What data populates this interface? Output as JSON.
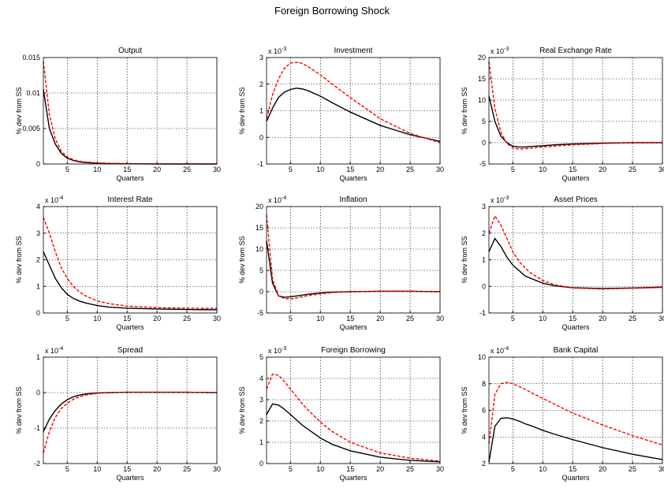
{
  "title": "Foreign Borrowing Shock",
  "chart_data": [
    {
      "type": "line",
      "title": "Output",
      "ylabel": "% dev from SS",
      "xlabel": "Quarters",
      "x": [
        1,
        2,
        3,
        4,
        5,
        6,
        7,
        8,
        10,
        12,
        15,
        20,
        25,
        30
      ],
      "xlim": [
        1,
        30
      ],
      "xticks": [
        5,
        10,
        15,
        20,
        25,
        30
      ],
      "ylim": [
        0,
        0.015
      ],
      "yticks": [
        0,
        0.005,
        0.01,
        0.015
      ],
      "grid": true,
      "series": [
        {
          "color": "#000000",
          "linestyle": "solid",
          "values": [
            0.0105,
            0.005,
            0.0028,
            0.0015,
            0.0008,
            0.0005,
            0.0003,
            0.0002,
            0.0001,
            5e-05,
            3e-05,
            0,
            0,
            0
          ]
        },
        {
          "color": "#ff0000",
          "linestyle": "dashed",
          "values": [
            0.0145,
            0.007,
            0.0035,
            0.0018,
            0.001,
            0.0006,
            0.0004,
            0.0003,
            0.00015,
            0.0001,
            5e-05,
            2e-05,
            1e-05,
            0
          ]
        }
      ]
    },
    {
      "type": "line",
      "title": "Investment",
      "ylabel": "% dev from SS",
      "xlabel": "Quarters",
      "multiplier": {
        "base": "x 10",
        "exponent": "-3"
      },
      "x": [
        1,
        2,
        3,
        4,
        5,
        6,
        7,
        8,
        10,
        12,
        15,
        20,
        25,
        30
      ],
      "xlim": [
        1,
        30
      ],
      "xticks": [
        5,
        10,
        15,
        20,
        25,
        30
      ],
      "ylim": [
        -1,
        3
      ],
      "yticks": [
        -1,
        0,
        1,
        2,
        3
      ],
      "grid": true,
      "series": [
        {
          "color": "#000000",
          "linestyle": "solid",
          "values": [
            0.6,
            1.1,
            1.5,
            1.7,
            1.8,
            1.85,
            1.82,
            1.75,
            1.55,
            1.3,
            0.95,
            0.45,
            0.1,
            -0.15
          ]
        },
        {
          "color": "#ff0000",
          "linestyle": "dashed",
          "values": [
            0.7,
            1.6,
            2.2,
            2.6,
            2.8,
            2.82,
            2.78,
            2.65,
            2.35,
            2.0,
            1.5,
            0.7,
            0.15,
            -0.2
          ]
        }
      ]
    },
    {
      "type": "line",
      "title": "Real Exchange Rate",
      "ylabel": "% dev from SS",
      "xlabel": "Quarters",
      "multiplier": {
        "base": "x 10",
        "exponent": "-3"
      },
      "x": [
        1,
        2,
        3,
        4,
        5,
        6,
        7,
        8,
        10,
        12,
        15,
        20,
        25,
        30
      ],
      "xlim": [
        1,
        30
      ],
      "xticks": [
        5,
        10,
        15,
        20,
        25,
        30
      ],
      "ylim": [
        -5,
        20
      ],
      "yticks": [
        -5,
        0,
        5,
        10,
        15,
        20
      ],
      "grid": true,
      "series": [
        {
          "color": "#000000",
          "linestyle": "solid",
          "values": [
            11,
            5,
            1.5,
            0,
            -0.8,
            -1,
            -1,
            -0.9,
            -0.7,
            -0.5,
            -0.3,
            -0.1,
            0,
            0
          ]
        },
        {
          "color": "#ff0000",
          "linestyle": "dashed",
          "values": [
            19,
            8,
            2.5,
            -0.2,
            -1.2,
            -1.5,
            -1.4,
            -1.3,
            -1,
            -0.8,
            -0.5,
            -0.2,
            0,
            0
          ]
        }
      ]
    },
    {
      "type": "line",
      "title": "Interest Rate",
      "ylabel": "% dev from SS",
      "xlabel": "Quarters",
      "multiplier": {
        "base": "x 10",
        "exponent": "-4"
      },
      "x": [
        1,
        2,
        3,
        4,
        5,
        6,
        7,
        8,
        10,
        12,
        15,
        20,
        25,
        30
      ],
      "xlim": [
        1,
        30
      ],
      "xticks": [
        5,
        10,
        15,
        20,
        25,
        30
      ],
      "ylim": [
        0,
        4
      ],
      "yticks": [
        0,
        1,
        2,
        3,
        4
      ],
      "grid": true,
      "series": [
        {
          "color": "#000000",
          "linestyle": "solid",
          "values": [
            2.3,
            1.8,
            1.3,
            0.95,
            0.7,
            0.55,
            0.45,
            0.38,
            0.28,
            0.22,
            0.18,
            0.15,
            0.13,
            0.12
          ]
        },
        {
          "color": "#ff0000",
          "linestyle": "dashed",
          "values": [
            3.6,
            3.0,
            2.3,
            1.7,
            1.3,
            1.0,
            0.8,
            0.65,
            0.45,
            0.35,
            0.26,
            0.2,
            0.18,
            0.17
          ]
        }
      ]
    },
    {
      "type": "line",
      "title": "Inflation",
      "ylabel": "% dev from SS",
      "xlabel": "Quarters",
      "multiplier": {
        "base": "x 10",
        "exponent": "-4"
      },
      "x": [
        1,
        2,
        3,
        4,
        5,
        6,
        7,
        8,
        10,
        12,
        15,
        20,
        25,
        30
      ],
      "xlim": [
        1,
        30
      ],
      "xticks": [
        5,
        10,
        15,
        20,
        25,
        30
      ],
      "ylim": [
        -5,
        20
      ],
      "yticks": [
        -5,
        0,
        5,
        10,
        15,
        20
      ],
      "grid": true,
      "series": [
        {
          "color": "#000000",
          "linestyle": "solid",
          "values": [
            12,
            2,
            -1,
            -1.3,
            -1.2,
            -1,
            -0.8,
            -0.6,
            -0.3,
            -0.1,
            0,
            0.1,
            0.1,
            0
          ]
        },
        {
          "color": "#ff0000",
          "linestyle": "dashed",
          "values": [
            18,
            3,
            -1,
            -1.6,
            -1.7,
            -1.5,
            -1.2,
            -0.9,
            -0.5,
            -0.2,
            0,
            0.1,
            0.1,
            0
          ]
        }
      ]
    },
    {
      "type": "line",
      "title": "Asset Prices",
      "ylabel": "% dev from SS",
      "xlabel": "Quarters",
      "multiplier": {
        "base": "x 10",
        "exponent": "-3"
      },
      "x": [
        1,
        2,
        3,
        4,
        5,
        6,
        7,
        8,
        10,
        12,
        15,
        20,
        25,
        30
      ],
      "xlim": [
        1,
        30
      ],
      "xticks": [
        5,
        10,
        15,
        20,
        25,
        30
      ],
      "ylim": [
        -1,
        3
      ],
      "yticks": [
        -1,
        0,
        1,
        2,
        3
      ],
      "grid": true,
      "series": [
        {
          "color": "#000000",
          "linestyle": "solid",
          "values": [
            1.3,
            1.8,
            1.5,
            1.1,
            0.8,
            0.6,
            0.4,
            0.3,
            0.12,
            0.02,
            -0.05,
            -0.08,
            -0.06,
            -0.03
          ]
        },
        {
          "color": "#ff0000",
          "linestyle": "dashed",
          "values": [
            2.0,
            2.65,
            2.3,
            1.8,
            1.3,
            0.95,
            0.7,
            0.5,
            0.22,
            0.06,
            -0.06,
            -0.1,
            -0.07,
            -0.04
          ]
        }
      ]
    },
    {
      "type": "line",
      "title": "Spread",
      "ylabel": "% dev from SS",
      "xlabel": "Quarters",
      "multiplier": {
        "base": "x 10",
        "exponent": "-4"
      },
      "x": [
        1,
        2,
        3,
        4,
        5,
        6,
        7,
        8,
        10,
        12,
        15,
        20,
        25,
        30
      ],
      "xlim": [
        1,
        30
      ],
      "xticks": [
        5,
        10,
        15,
        20,
        25,
        30
      ],
      "ylim": [
        -2,
        1
      ],
      "yticks": [
        -2,
        -1,
        0,
        1
      ],
      "grid": true,
      "series": [
        {
          "color": "#000000",
          "linestyle": "solid",
          "values": [
            -1.1,
            -0.75,
            -0.5,
            -0.32,
            -0.2,
            -0.12,
            -0.07,
            -0.04,
            -0.01,
            0,
            0.01,
            0.01,
            0.01,
            0
          ]
        },
        {
          "color": "#ff0000",
          "linestyle": "dashed",
          "values": [
            -1.7,
            -1.1,
            -0.7,
            -0.45,
            -0.3,
            -0.19,
            -0.12,
            -0.07,
            -0.02,
            0,
            0.01,
            0.01,
            0.01,
            0
          ]
        }
      ]
    },
    {
      "type": "line",
      "title": "Foreign Borrowing",
      "ylabel": "% dev from SS",
      "xlabel": "Quarters",
      "multiplier": {
        "base": "x 10",
        "exponent": "-3"
      },
      "x": [
        1,
        2,
        3,
        4,
        5,
        6,
        7,
        8,
        10,
        12,
        15,
        20,
        25,
        30
      ],
      "xlim": [
        1,
        30
      ],
      "xticks": [
        5,
        10,
        15,
        20,
        25,
        30
      ],
      "ylim": [
        0,
        5
      ],
      "yticks": [
        0,
        1,
        2,
        3,
        4,
        5
      ],
      "grid": true,
      "series": [
        {
          "color": "#000000",
          "linestyle": "solid",
          "values": [
            2.3,
            2.8,
            2.75,
            2.55,
            2.3,
            2.05,
            1.8,
            1.6,
            1.2,
            0.9,
            0.6,
            0.3,
            0.15,
            0.08
          ]
        },
        {
          "color": "#ff0000",
          "linestyle": "dashed",
          "values": [
            3.5,
            4.2,
            4.15,
            3.85,
            3.5,
            3.15,
            2.8,
            2.5,
            1.95,
            1.5,
            1.0,
            0.5,
            0.25,
            0.12
          ]
        }
      ]
    },
    {
      "type": "line",
      "title": "Bank Capital",
      "ylabel": "% dev from SS",
      "xlabel": "Quarters",
      "multiplier": {
        "base": "x 10",
        "exponent": "-4"
      },
      "x": [
        1,
        2,
        3,
        4,
        5,
        6,
        7,
        8,
        10,
        12,
        15,
        20,
        25,
        30
      ],
      "xlim": [
        1,
        30
      ],
      "xticks": [
        5,
        10,
        15,
        20,
        25,
        30
      ],
      "ylim": [
        2,
        10
      ],
      "yticks": [
        2,
        4,
        6,
        8,
        10
      ],
      "grid": true,
      "series": [
        {
          "color": "#000000",
          "linestyle": "solid",
          "values": [
            2.1,
            4.8,
            5.4,
            5.45,
            5.35,
            5.2,
            5.0,
            4.85,
            4.5,
            4.2,
            3.8,
            3.2,
            2.7,
            2.3
          ]
        },
        {
          "color": "#ff0000",
          "linestyle": "dashed",
          "values": [
            3.5,
            7.2,
            8.0,
            8.1,
            8.0,
            7.8,
            7.6,
            7.35,
            6.9,
            6.45,
            5.8,
            4.9,
            4.1,
            3.4
          ]
        }
      ]
    }
  ]
}
